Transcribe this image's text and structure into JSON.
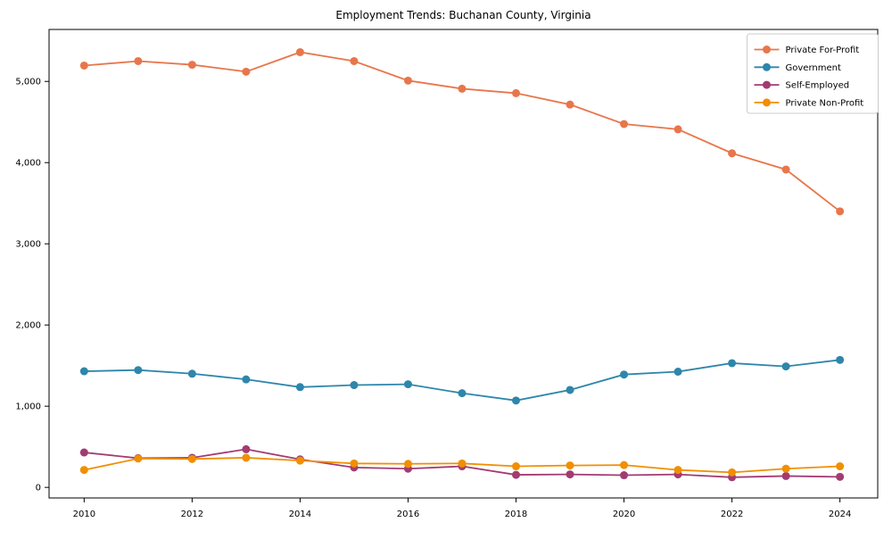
{
  "chart_data": {
    "type": "line",
    "title": "Employment Trends: Buchanan County, Virginia",
    "xlabel": "",
    "ylabel": "",
    "x": [
      2010,
      2011,
      2012,
      2013,
      2014,
      2015,
      2016,
      2017,
      2018,
      2019,
      2020,
      2021,
      2022,
      2023,
      2024
    ],
    "series": [
      {
        "name": "Private For-Profit",
        "color": "#E8764B",
        "values": [
          5195,
          5250,
          5205,
          5120,
          5360,
          5250,
          5010,
          4910,
          4855,
          4715,
          4475,
          4410,
          4115,
          3915,
          3400
        ]
      },
      {
        "name": "Government",
        "color": "#2E86AB",
        "values": [
          1430,
          1445,
          1400,
          1330,
          1235,
          1260,
          1270,
          1160,
          1070,
          1200,
          1390,
          1425,
          1530,
          1490,
          1570
        ]
      },
      {
        "name": "Self-Employed",
        "color": "#A23B72",
        "values": [
          430,
          360,
          365,
          470,
          345,
          245,
          230,
          260,
          155,
          160,
          150,
          160,
          125,
          140,
          130
        ]
      },
      {
        "name": "Private Non-Profit",
        "color": "#F18F01",
        "values": [
          215,
          355,
          350,
          365,
          330,
          295,
          290,
          295,
          260,
          270,
          275,
          215,
          185,
          230,
          260
        ]
      }
    ],
    "xticks": [
      2010,
      2012,
      2014,
      2016,
      2018,
      2020,
      2022,
      2024
    ],
    "xtick_labels": [
      "2010",
      "2012",
      "2014",
      "2016",
      "2018",
      "2020",
      "2022",
      "2024"
    ],
    "yticks": [
      0,
      1000,
      2000,
      3000,
      4000,
      5000
    ],
    "ytick_labels": [
      "0",
      "1,000",
      "2,000",
      "3,000",
      "4,000",
      "5,000"
    ],
    "xlim": [
      2009.35,
      2024.7
    ],
    "ylim": [
      -130,
      5640
    ],
    "grid": false,
    "legend_position": "upper-right",
    "marker": "circle",
    "axis_color": "#000000",
    "legend_border_color": "#cccccc",
    "background_color": "#ffffff"
  }
}
